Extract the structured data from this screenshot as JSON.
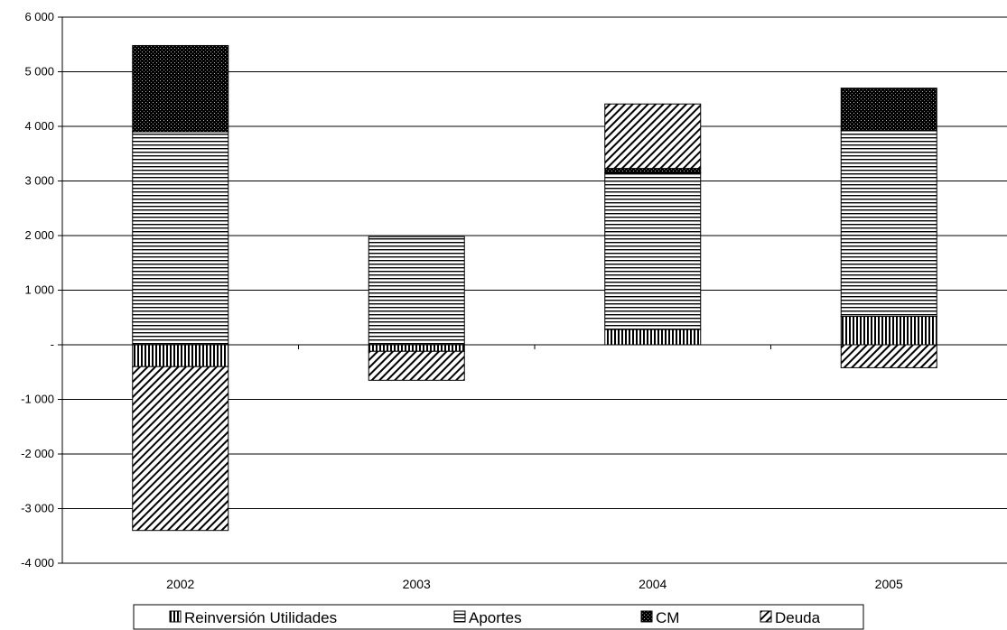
{
  "chart_data": {
    "type": "bar",
    "stacked": true,
    "categories": [
      "2002",
      "2003",
      "2004",
      "2005"
    ],
    "series": [
      {
        "name": "Reinversión Utilidades",
        "values": [
          -400,
          -120,
          280,
          520
        ],
        "pattern": "vertical-lines"
      },
      {
        "name": "Aportes",
        "values": [
          3900,
          1980,
          2870,
          3400
        ],
        "pattern": "horizontal-lines"
      },
      {
        "name": "CM",
        "values": [
          1580,
          0,
          80,
          780
        ],
        "pattern": "dark-dots"
      },
      {
        "name": "Deuda",
        "values": [
          -3000,
          -530,
          1180,
          -420
        ],
        "pattern": "diagonal-lines"
      }
    ],
    "ylim": [
      -4000,
      6000
    ],
    "yticks": [
      6000,
      5000,
      4000,
      3000,
      2000,
      1000,
      0,
      -1000,
      -2000,
      -3000,
      -4000
    ],
    "ytick_labels": [
      "6 000",
      "5 000",
      "4 000",
      "3 000",
      "2 000",
      "1 000",
      "-",
      "-1 000",
      "-2 000",
      "-3 000",
      "-4 000"
    ],
    "title": "",
    "xlabel": "",
    "ylabel": "",
    "grid": true,
    "legend_position": "bottom"
  }
}
